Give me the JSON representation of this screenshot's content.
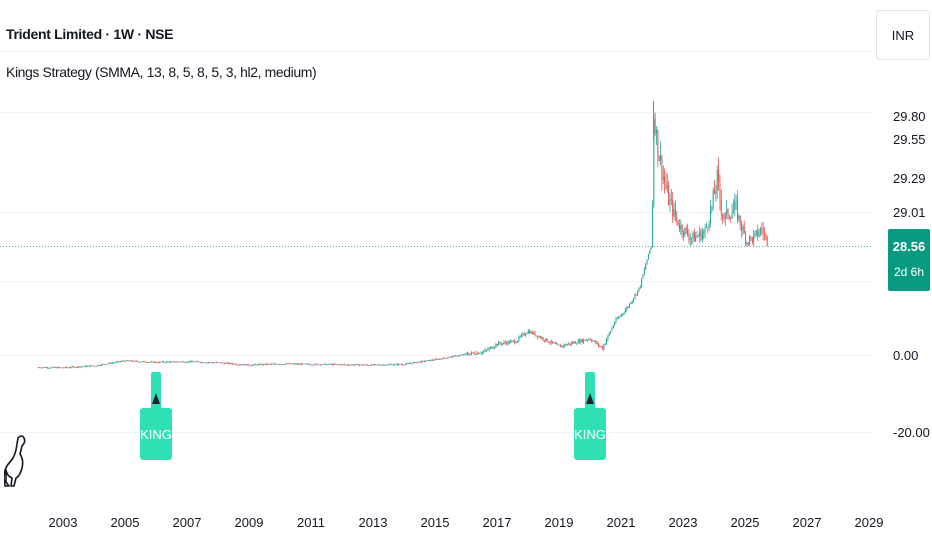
{
  "header": {
    "title": "Trident Limited · 1W · NSE",
    "indicator": "Kings Strategy (SMMA, 13, 8, 5, 8, 5, 3, hl2, medium)",
    "currency": "INR"
  },
  "price_axis": {
    "ticks": [
      "29.55",
      "29.29",
      "29.01",
      "0.00",
      "-20.00"
    ],
    "partial_top": "29.80",
    "last_price": "28.56",
    "countdown": "2d 6h"
  },
  "time_axis": {
    "ticks": [
      "2003",
      "2005",
      "2007",
      "2009",
      "2011",
      "2013",
      "2015",
      "2017",
      "2019",
      "2021",
      "2023",
      "2025",
      "2027",
      "2029"
    ]
  },
  "colors": {
    "up": "#26a69a",
    "down": "#ef5350",
    "king": "#2fe0b4",
    "last_price": "#089981"
  },
  "chart_data": {
    "type": "candlestick",
    "title": "Trident Limited · 1W · NSE",
    "price_scale": "custom",
    "x": [
      2002.2,
      2003,
      2004,
      2005,
      2006,
      2007,
      2008,
      2009,
      2010,
      2011,
      2012,
      2013,
      2014,
      2015,
      2016,
      2016.6,
      2017,
      2017.6,
      2018,
      2018.6,
      2019,
      2019.6,
      2020,
      2020.4,
      2020.8,
      2021.2,
      2021.6,
      2021.9,
      2022.05,
      2022.2,
      2022.5,
      2022.9,
      2023.3,
      2023.7,
      2024.1,
      2024.3,
      2024.7,
      2025.05,
      2025.3,
      2025.55,
      2025.75
    ],
    "y": [
      -3.2,
      -3.3,
      -2.8,
      -1.5,
      -1.9,
      -1.7,
      -2.0,
      -2.6,
      -2.3,
      -2.4,
      -2.5,
      -2.6,
      -2.4,
      -1.2,
      0.2,
      0.9,
      2.9,
      3.6,
      6.3,
      3.8,
      2.2,
      3.5,
      4.3,
      1.8,
      8.7,
      12.4,
      17.6,
      26.9,
      29.78,
      29.48,
      29.15,
      28.82,
      28.66,
      28.74,
      29.28,
      28.93,
      29.04,
      28.62,
      28.67,
      28.79,
      28.56
    ],
    "last_price": 28.56,
    "signals": [
      {
        "label": "KING",
        "x": 2006
      },
      {
        "label": "KING",
        "x": 2020
      }
    ]
  }
}
